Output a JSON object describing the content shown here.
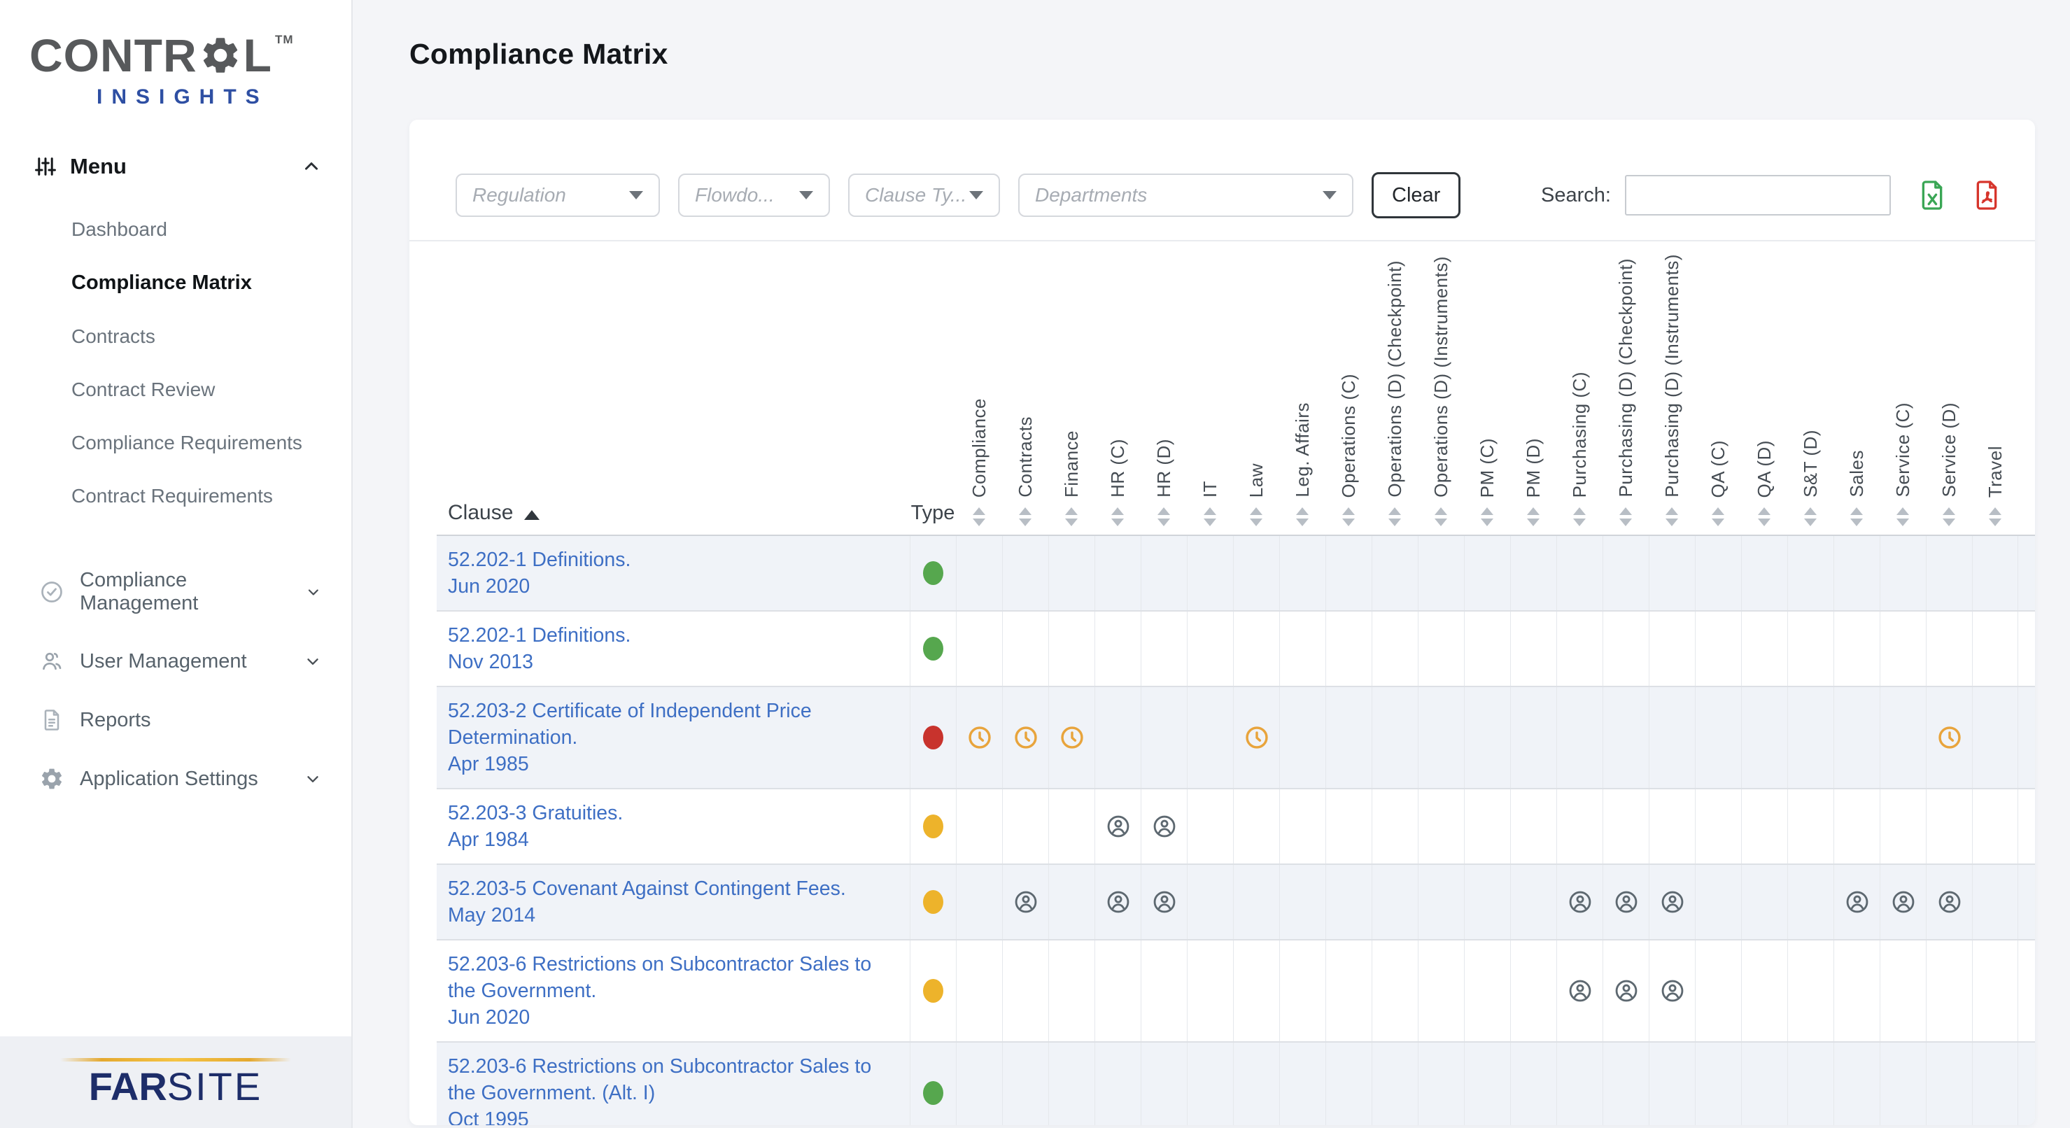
{
  "sidebar": {
    "logo": {
      "part1": "CONTR",
      "part2": "L",
      "tm": "TM",
      "subtitle": "INSIGHTS"
    },
    "menu_label": "Menu",
    "items": [
      {
        "label": "Dashboard",
        "active": false
      },
      {
        "label": "Compliance Matrix",
        "active": true
      },
      {
        "label": "Contracts",
        "active": false
      },
      {
        "label": "Contract Review",
        "active": false
      },
      {
        "label": "Compliance Requirements",
        "active": false
      },
      {
        "label": "Contract Requirements",
        "active": false
      }
    ],
    "sections": [
      {
        "label": "Compliance Management",
        "icon": "check-circle-icon",
        "has_chevron": true
      },
      {
        "label": "User Management",
        "icon": "users-icon",
        "has_chevron": true
      },
      {
        "label": "Reports",
        "icon": "document-icon",
        "has_chevron": false
      },
      {
        "label": "Application Settings",
        "icon": "gear-icon",
        "has_chevron": true
      }
    ],
    "footer_logo": {
      "part1": "FAR",
      "part2": "SITE"
    }
  },
  "header": {
    "title": "Compliance Matrix"
  },
  "filters": {
    "dropdowns": [
      {
        "placeholder": "Regulation"
      },
      {
        "placeholder": "Flowdo..."
      },
      {
        "placeholder": "Clause Ty..."
      },
      {
        "placeholder": "Departments"
      }
    ],
    "clear_label": "Clear",
    "search_label": "Search:",
    "search_value": "",
    "export": {
      "excel": "excel-export-icon",
      "pdf": "pdf-export-icon"
    }
  },
  "matrix": {
    "clause_header": "Clause",
    "type_header": "Type",
    "sort": {
      "column": "Clause",
      "direction": "asc"
    },
    "columns": [
      "Compliance",
      "Contracts",
      "Finance",
      "HR (C)",
      "HR (D)",
      "IT",
      "Law",
      "Leg. Affairs",
      "Operations (C)",
      "Operations (D) (Checkpoint)",
      "Operations (D) (Instruments)",
      "PM (C)",
      "PM (D)",
      "Purchasing (C)",
      "Purchasing (D) (Checkpoint)",
      "Purchasing (D) (Instruments)",
      "QA (C)",
      "QA (D)",
      "S&T (D)",
      "Sales",
      "Service (C)",
      "Service (D)",
      "Travel"
    ],
    "type_colors": {
      "green": "#56a74e",
      "red": "#c8332d",
      "yellow": "#edb32b"
    },
    "mark_colors": {
      "clock": "#e8a43c",
      "person": "#5d6870"
    },
    "rows": [
      {
        "clause": "52.202-1 Definitions.",
        "date": "Jun 2020",
        "type": "green",
        "marks": {}
      },
      {
        "clause": "52.202-1 Definitions.",
        "date": "Nov 2013",
        "type": "green",
        "marks": {}
      },
      {
        "clause": "52.203-2 Certificate of Independent Price Determination.",
        "date": "Apr 1985",
        "type": "red",
        "marks": {
          "Compliance": "clock",
          "Contracts": "clock",
          "Finance": "clock",
          "Law": "clock",
          "Service (D)": "clock"
        }
      },
      {
        "clause": "52.203-3 Gratuities.",
        "date": "Apr 1984",
        "type": "yellow",
        "marks": {
          "HR (C)": "person",
          "HR (D)": "person"
        }
      },
      {
        "clause": "52.203-5 Covenant Against Contingent Fees.",
        "date": "May 2014",
        "type": "yellow",
        "marks": {
          "Contracts": "person",
          "HR (C)": "person",
          "HR (D)": "person",
          "Purchasing (C)": "person",
          "Purchasing (D) (Checkpoint)": "person",
          "Purchasing (D) (Instruments)": "person",
          "Sales": "person",
          "Service (C)": "person",
          "Service (D)": "person"
        }
      },
      {
        "clause": "52.203-6 Restrictions on Subcontractor Sales to the Government.",
        "date": "Jun 2020",
        "type": "yellow",
        "marks": {
          "Purchasing (C)": "person",
          "Purchasing (D) (Checkpoint)": "person",
          "Purchasing (D) (Instruments)": "person"
        }
      },
      {
        "clause": "52.203-6 Restrictions on Subcontractor Sales to the Government. (Alt. I)",
        "date": "Oct 1995",
        "type": "green",
        "marks": {}
      }
    ],
    "partial_next_row_visible": true
  }
}
